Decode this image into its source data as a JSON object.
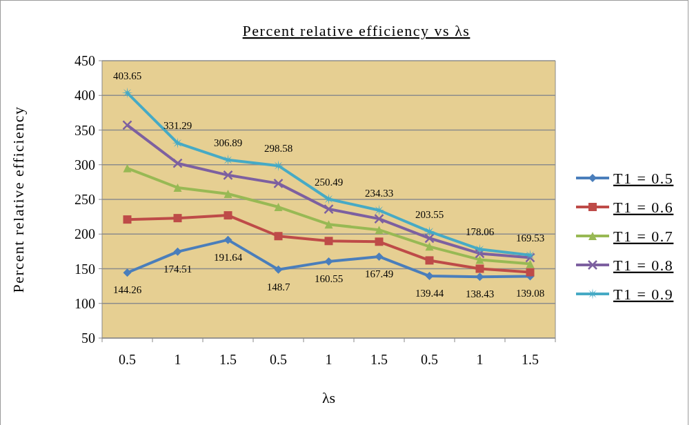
{
  "chart_data": {
    "type": "line",
    "title": "Percent relative efficiency  vs  λs",
    "xlabel": "λs",
    "ylabel": "Percent relative efficiency",
    "categories": [
      "0.5",
      "1",
      "1.5",
      "0.5",
      "1",
      "1.5",
      "0.5",
      "1",
      "1.5"
    ],
    "series": [
      {
        "name": "T1 = 0.5",
        "color": "#4a7ebb",
        "marker": "diamond",
        "values": [
          144.26,
          174.51,
          191.64,
          148.7,
          160.55,
          167.49,
          139.44,
          138.43,
          139.08
        ],
        "value_labels": [
          "144.26",
          "174.51",
          "191.64",
          "148.7",
          "160.55",
          "167.49",
          "139.44",
          "138.43",
          "139.08"
        ]
      },
      {
        "name": "T1 = 0.6",
        "color": "#be4b48",
        "marker": "square",
        "values": [
          221,
          223,
          227,
          197,
          190,
          189,
          162,
          150,
          145
        ]
      },
      {
        "name": "T1 = 0.7",
        "color": "#98b954",
        "marker": "triangle",
        "values": [
          295,
          267,
          258,
          239,
          214,
          206,
          182,
          163,
          157
        ]
      },
      {
        "name": "T1 = 0.8",
        "color": "#7d60a0",
        "marker": "cross",
        "values": [
          357,
          302,
          285,
          273,
          236,
          222,
          194,
          172,
          166
        ]
      },
      {
        "name": "T1 = 0.9",
        "color": "#46aac5",
        "marker": "star",
        "values": [
          403.65,
          331.29,
          306.89,
          298.58,
          250.49,
          234.33,
          203.55,
          178.06,
          169.53
        ],
        "value_labels": [
          "403.65",
          "331.29",
          "306.89",
          "298.58",
          "250.49",
          "234.33",
          "203.55",
          "178.06",
          "169.53"
        ]
      }
    ],
    "ylim": [
      50,
      450
    ],
    "yticks": [
      50,
      100,
      150,
      200,
      250,
      300,
      350,
      400,
      450
    ],
    "grid": "y",
    "legend": "right"
  }
}
